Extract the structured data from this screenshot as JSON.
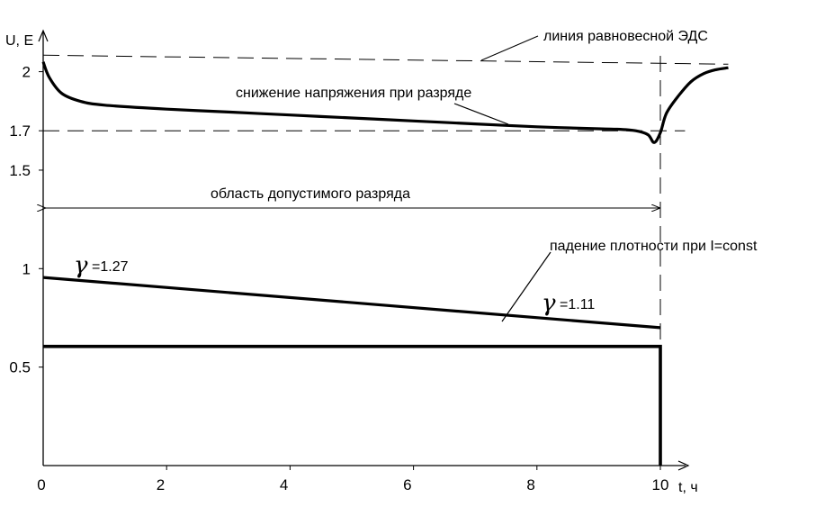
{
  "chart_data": {
    "type": "line",
    "xlabel": "t, ч",
    "ylabel": "U, E",
    "x_ticks": [
      {
        "value": 0,
        "label": "0"
      },
      {
        "value": 2,
        "label": "2"
      },
      {
        "value": 4,
        "label": "4"
      },
      {
        "value": 6,
        "label": "6"
      },
      {
        "value": 8,
        "label": "8"
      },
      {
        "value": 10,
        "label": "10"
      }
    ],
    "y_ticks": [
      {
        "value": 2.0,
        "label": "2"
      },
      {
        "value": 1.7,
        "label": "1.7"
      },
      {
        "value": 1.5,
        "label": "1.5"
      },
      {
        "value": 1.0,
        "label": "1"
      },
      {
        "value": 0.5,
        "label": "0.5"
      }
    ],
    "xlim": [
      0,
      10.4
    ],
    "ylim": [
      0.0,
      2.2
    ],
    "grid": false,
    "series": [
      {
        "role": "discharge_voltage",
        "x": [
          0,
          0.1,
          0.3,
          0.6,
          1.0,
          2,
          3,
          4,
          5,
          6,
          7,
          8,
          9,
          9.3,
          9.6,
          9.8,
          9.9,
          10.0,
          10.1,
          10.3,
          10.5,
          10.7,
          10.9,
          11.1
        ],
        "y": [
          2.05,
          1.97,
          1.89,
          1.85,
          1.83,
          1.81,
          1.795,
          1.78,
          1.765,
          1.75,
          1.735,
          1.72,
          1.71,
          1.708,
          1.7,
          1.68,
          1.64,
          1.69,
          1.79,
          1.88,
          1.95,
          1.99,
          2.01,
          2.02
        ]
      },
      {
        "role": "density",
        "x": [
          0,
          10
        ],
        "y": [
          0.955,
          0.7
        ]
      },
      {
        "role": "current",
        "x": [
          0,
          10,
          10
        ],
        "y": [
          0.605,
          0.605,
          0.0
        ]
      }
    ],
    "reference_lines": [
      {
        "role": "emf_level",
        "y": 2.07
      },
      {
        "role": "min_voltage",
        "y": 1.7
      },
      {
        "role": "end_time",
        "x": 10
      }
    ],
    "annotations": {
      "emf_line": "линия равновесной ЭДС",
      "voltage_drop": "снижение напряжения при разряде",
      "allowed_region": "область допустимого разряда",
      "density_drop": "падение плотности при I=const",
      "gamma_start_symbol": "γ",
      "gamma_start_value": "=1.27",
      "gamma_end_symbol": "γ",
      "gamma_end_value": "=1.11"
    }
  }
}
